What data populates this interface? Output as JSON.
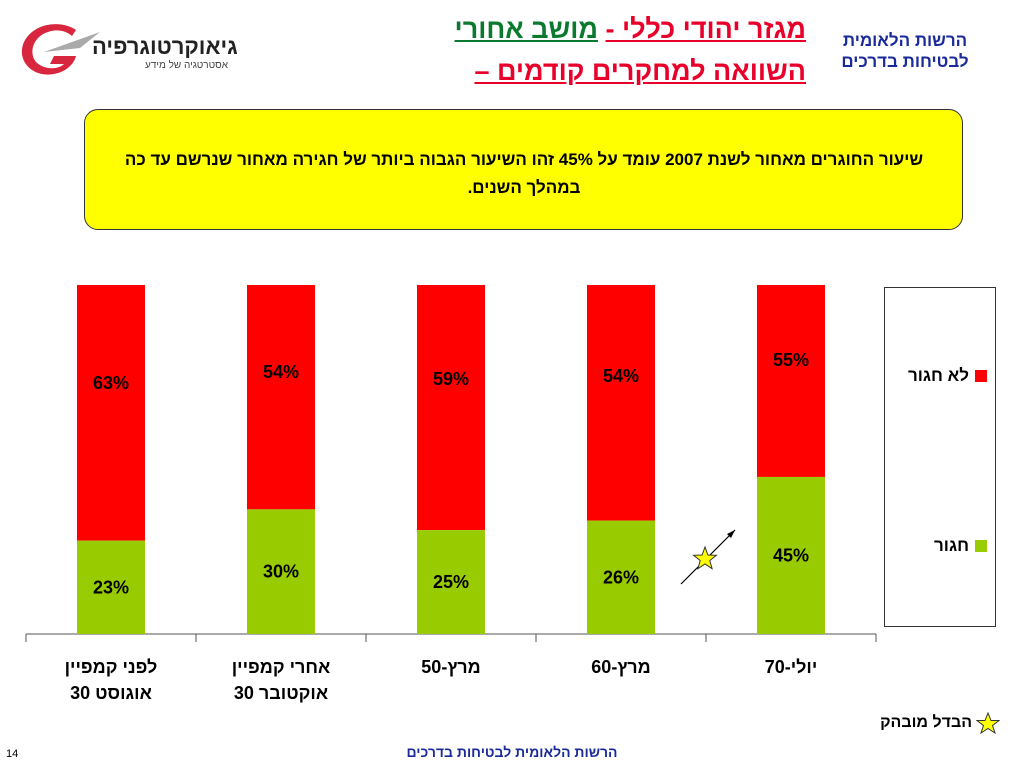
{
  "header": {
    "logo_text": "גיאוקרטוגרפיה",
    "logo_sub": "אסטרטגיה של מידע",
    "title_line1_part1": "מגזר יהודי כללי -",
    "title_line1_part2": "מושב אחורי",
    "title_line2": "השוואה למחקרים קודמים –",
    "org_line1": "הרשות הלאומית",
    "org_line2": "לבטיחות בדרכים"
  },
  "callout": {
    "text": "שיעור החוגרים מאחור לשנת 2007 עומד על 45% זהו השיעור הגבוה ביותר של חגירה מאחור שנרשם עד כה במהלך השנים."
  },
  "colors": {
    "red": "#ff0000",
    "green": "#99cc00",
    "star": "#ffff00"
  },
  "chart_data": {
    "type": "bar",
    "stacked": true,
    "categories": [
      "לפני קמפיין אוגוסט 30",
      "אחרי קמפיין אוקטובר 30",
      "מרץ-50",
      "מרץ-60",
      "יולי-70"
    ],
    "category_lines": [
      [
        "לפני קמפיין",
        "אוגוסט 30"
      ],
      [
        "אחרי קמפיין",
        "אוקטובר 30"
      ],
      [
        "מרץ-50"
      ],
      [
        "מרץ-60"
      ],
      [
        "יולי-70"
      ]
    ],
    "series": [
      {
        "name": "חגור",
        "color": "#99cc00",
        "values": [
          23,
          30,
          25,
          26,
          45
        ]
      },
      {
        "name": "לא חגור",
        "color": "#ff0000",
        "values": [
          63,
          54,
          59,
          54,
          55
        ]
      }
    ],
    "value_labels": {
      "green": [
        "23%",
        "30%",
        "25%",
        "26%",
        "45%"
      ],
      "red": [
        "63%",
        "54%",
        "59%",
        "54%",
        "55%"
      ]
    },
    "legend_position": "right",
    "highlight": {
      "category_index": 4,
      "note": "הבדל מובהק"
    }
  },
  "legend": {
    "not_belted": "לא חגור",
    "belted": "חגור"
  },
  "footer": {
    "star_note": "הבדל מובהק",
    "org": "הרשות הלאומית לבטיחות בדרכים",
    "page": "14"
  }
}
